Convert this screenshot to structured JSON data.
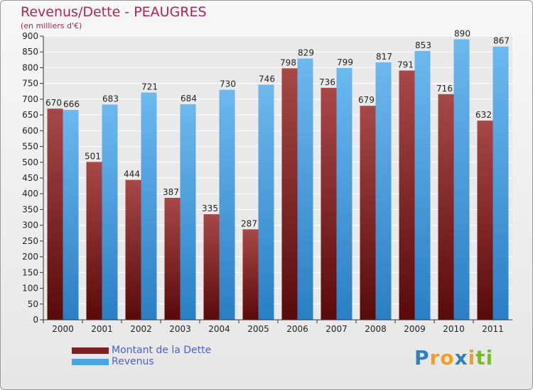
{
  "chart_data": {
    "type": "bar",
    "title": "Revenus/Dette - PEAUGRES",
    "subtitle": "(en milliers d'€)",
    "categories": [
      "2000",
      "2001",
      "2002",
      "2003",
      "2004",
      "2005",
      "2006",
      "2007",
      "2008",
      "2009",
      "2010",
      "2011"
    ],
    "series": [
      {
        "name": "Montant de la Dette",
        "color": "#7a2020",
        "values": [
          670,
          501,
          444,
          387,
          335,
          287,
          798,
          736,
          679,
          791,
          716,
          632
        ]
      },
      {
        "name": "Revenus",
        "color": "#4da3e4",
        "values": [
          666,
          683,
          721,
          684,
          730,
          746,
          829,
          799,
          817,
          853,
          890,
          867
        ]
      }
    ],
    "ylim": [
      0,
      900
    ],
    "yticks": [
      0,
      50,
      100,
      150,
      200,
      250,
      300,
      350,
      400,
      450,
      500,
      550,
      600,
      650,
      700,
      750,
      800,
      850,
      900
    ],
    "xlabel": "",
    "ylabel": "",
    "grid": true,
    "legend_position": "bottom-left"
  },
  "logo": {
    "letters": [
      {
        "char": "P",
        "color": "#2f7fc1"
      },
      {
        "char": "r",
        "color": "#f0a020"
      },
      {
        "char": "o",
        "color": "#f0a020"
      },
      {
        "char": "x",
        "color": "#2f7fc1"
      },
      {
        "char": "i",
        "color": "#f0a020"
      },
      {
        "char": "t",
        "color": "#7dbb2e"
      },
      {
        "char": "i",
        "color": "#7dbb2e"
      }
    ]
  }
}
